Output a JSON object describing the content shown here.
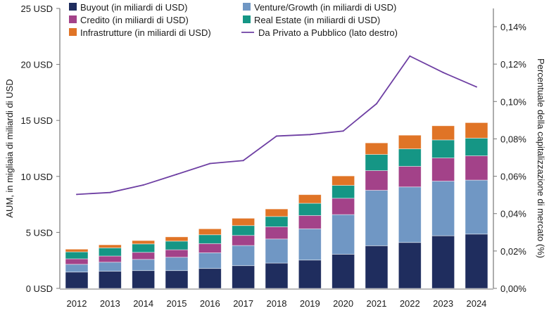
{
  "chart_data": {
    "type": "bar",
    "stacked": true,
    "categories": [
      "2012",
      "2013",
      "2014",
      "2015",
      "2016",
      "2017",
      "2018",
      "2019",
      "2020",
      "2021",
      "2022",
      "2023",
      "2024"
    ],
    "ylabel": "AUM, in migliaia di miliardi di USD",
    "y2label": "Percentuale della capitalizzazione di mercato (%)",
    "ylim": [
      0,
      25
    ],
    "y2lim": [
      0,
      0.15
    ],
    "yticks": [
      "0 USD",
      "5 USD",
      "10 USD",
      "15 USD",
      "20 USD",
      "25 USD"
    ],
    "y2ticks": [
      "0,00%",
      "0,02%",
      "0,04%",
      "0,06%",
      "0,08%",
      "0,10%",
      "0,12%",
      "0,14%"
    ],
    "legend_position": "top",
    "grid": false,
    "series": [
      {
        "name": "Buyout (in miliardi di USD)",
        "color": "#1f2d5e",
        "values": [
          1.46,
          1.53,
          1.59,
          1.59,
          1.78,
          2.03,
          2.26,
          2.53,
          3.05,
          3.81,
          4.1,
          4.7,
          4.85
        ]
      },
      {
        "name": "Venture/Growth (in miliardi di USD)",
        "color": "#7097c4",
        "values": [
          0.69,
          0.81,
          1.0,
          1.19,
          1.4,
          1.8,
          2.15,
          2.79,
          3.54,
          4.95,
          4.96,
          4.88,
          4.82
        ]
      },
      {
        "name": "Credito (in miliardi di USD)",
        "color": "#a34289",
        "values": [
          0.49,
          0.55,
          0.63,
          0.67,
          0.82,
          0.9,
          1.09,
          1.19,
          1.46,
          1.76,
          1.84,
          2.07,
          2.17
        ]
      },
      {
        "name": "Real Estate (in miliardi di USD)",
        "color": "#159685",
        "values": [
          0.62,
          0.73,
          0.75,
          0.77,
          0.79,
          0.88,
          0.92,
          1.09,
          1.15,
          1.44,
          1.56,
          1.61,
          1.58
        ]
      },
      {
        "name": "Infrastrutture (in miliardi di USD)",
        "color": "#e07426",
        "values": [
          0.24,
          0.27,
          0.3,
          0.38,
          0.53,
          0.65,
          0.67,
          0.77,
          0.84,
          1.03,
          1.22,
          1.26,
          1.38
        ]
      }
    ],
    "line_series": {
      "name": "Da Privato a Pubblico (lato destro)",
      "color": "#6e3fa3",
      "axis": "right",
      "values": [
        0.0503,
        0.0513,
        0.0553,
        0.061,
        0.0668,
        0.0684,
        0.0815,
        0.0823,
        0.0842,
        0.0988,
        0.1243,
        0.1155,
        0.1078
      ]
    }
  }
}
